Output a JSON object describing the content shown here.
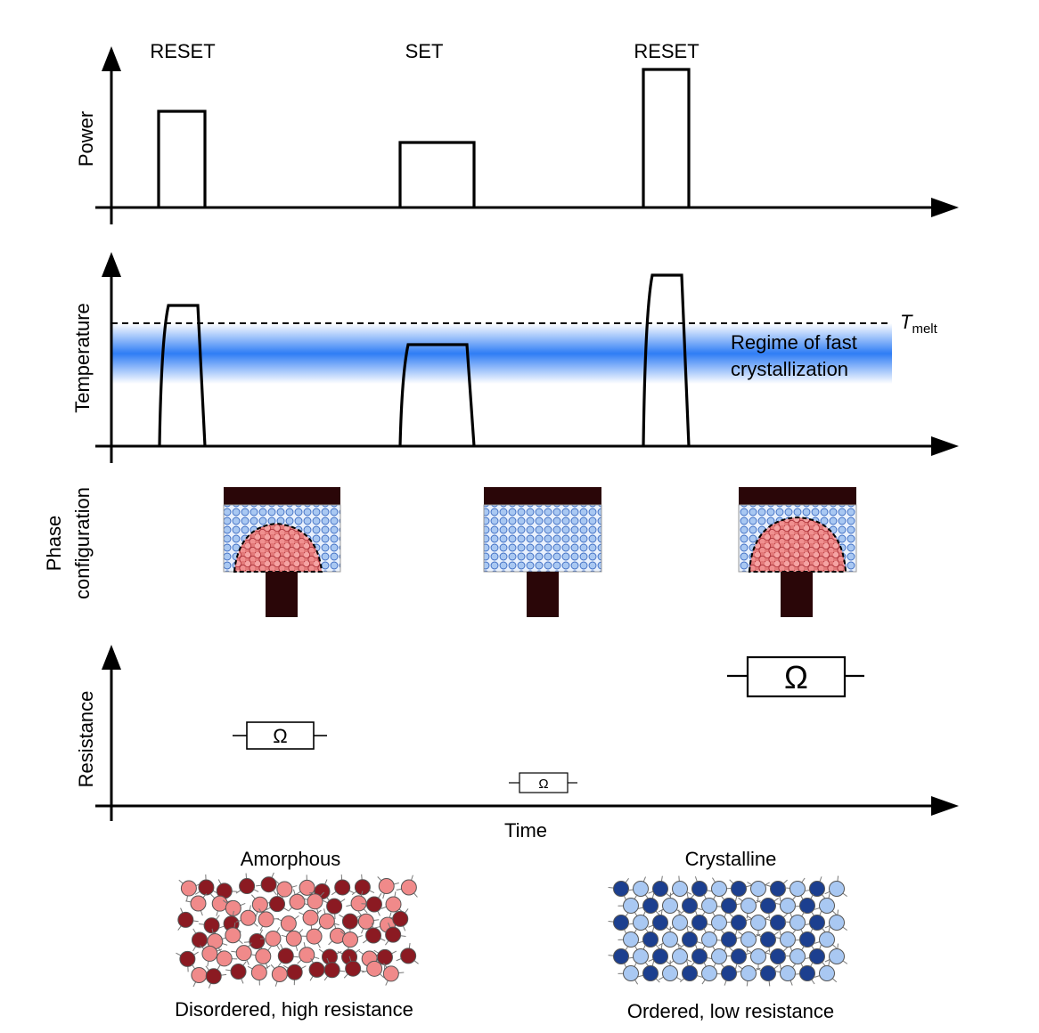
{
  "labels": {
    "pulse_1": "RESET",
    "pulse_2": "SET",
    "pulse_3": "RESET",
    "y_power": "Power",
    "y_temperature": "Temperature",
    "y_phase_line1": "Phase",
    "y_phase_line2": "configuration",
    "y_resistance": "Resistance",
    "x_time": "Time",
    "t_melt_main": "T",
    "t_melt_sub": "melt",
    "regime_line1": "Regime of fast",
    "regime_line2": "crystallization",
    "omega": "Ω",
    "amorphous_title": "Amorphous",
    "amorphous_caption": "Disordered, high resistance",
    "crystalline_title": "Crystalline",
    "crystalline_caption": "Ordered, low resistance"
  },
  "colors": {
    "regime_band": "#2f7df5",
    "crystal_light": "#a9c8f2",
    "crystal_dark": "#1c3f8f",
    "amorphous_light": "#f08a8a",
    "amorphous_dark": "#8b1a22",
    "electrode": "#2a0608"
  },
  "power_levels": [
    0.72,
    0.48,
    1.0
  ],
  "resistance_levels": [
    "medium",
    "low",
    "high"
  ],
  "phase_states": [
    "amorphous-dome",
    "fully-crystalline",
    "amorphous-dome-large"
  ]
}
